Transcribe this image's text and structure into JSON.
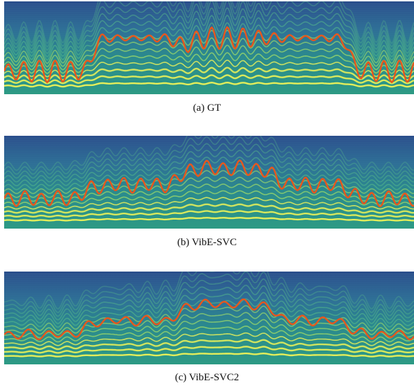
{
  "figure": {
    "panels": [
      {
        "caption": "(a) GT"
      },
      {
        "caption": "(b) VibE-SVC"
      },
      {
        "caption": "(c) VibE-SVC2"
      }
    ]
  }
}
